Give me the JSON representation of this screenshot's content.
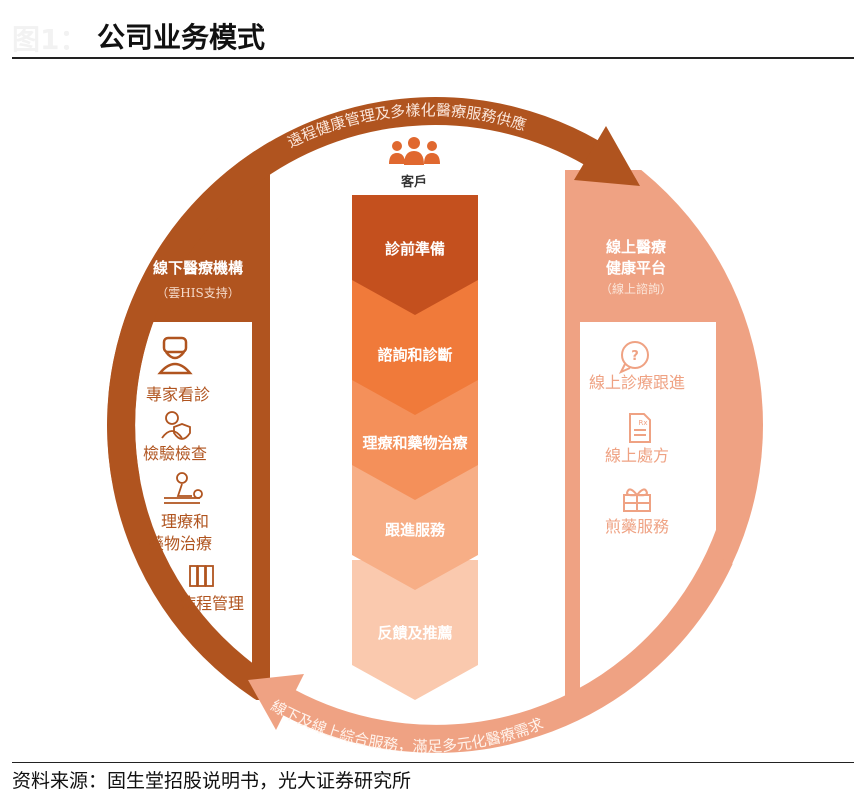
{
  "header": {
    "figure_label": "图1：",
    "title": "公司业务模式"
  },
  "diagram": {
    "top_arrow_text": "遠程健康管理及多樣化醫療服務供應",
    "bottom_arrow_text": "線下及線上綜合服務，滿足多元化醫療需求",
    "customer": {
      "icon": "people-group-icon",
      "label": "客戶"
    },
    "center_steps": [
      "診前準備",
      "諮詢和診斷",
      "理療和藥物治療",
      "跟進服務",
      "反饋及推薦"
    ],
    "left": {
      "title": "線下醫療機構",
      "subtitle": "（雲HIS支持）",
      "items": [
        {
          "icon": "doctor-icon",
          "label": "專家看診"
        },
        {
          "icon": "lab-doctor-shield-icon",
          "label": "檢驗檢查"
        },
        {
          "icon": "massage-therapy-icon",
          "label_line1": "理療和",
          "label_line2": "藥物治療"
        },
        {
          "icon": "binders-icon",
          "label": "病程管理"
        }
      ]
    },
    "right": {
      "title_line1": "線上醫療",
      "title_line2": "健康平台",
      "subtitle": "（線上諮詢）",
      "items": [
        {
          "icon": "question-bubble-icon",
          "label": "線上診療跟進"
        },
        {
          "icon": "prescription-icon",
          "label": "線上處方"
        },
        {
          "icon": "gift-icon",
          "label": "煎藥服務"
        }
      ]
    },
    "colors": {
      "dark": "#B0541F",
      "light": "#EFA283",
      "step1": "#C4501E",
      "step2": "#F07A3A",
      "step3": "#F4905A",
      "step4": "#F7AE86",
      "step5": "#FAC9AE"
    }
  },
  "footer": {
    "source": "资料来源：固生堂招股说明书，光大证券研究所"
  }
}
